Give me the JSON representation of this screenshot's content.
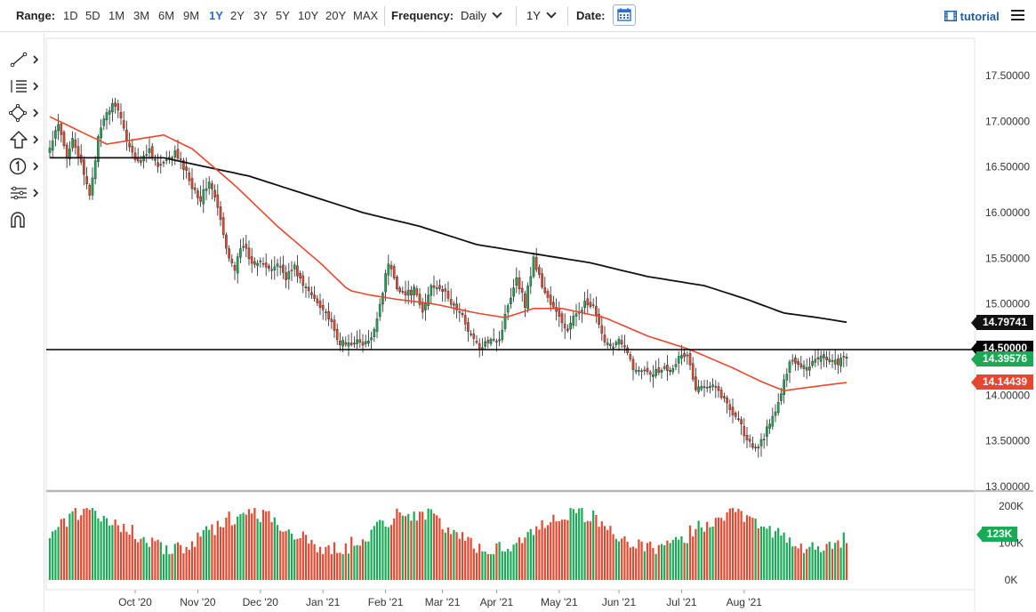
{
  "toolbar": {
    "range_label": "Range:",
    "ranges": [
      "1D",
      "5D",
      "1M",
      "3M",
      "6M",
      "9M",
      "1Y",
      "2Y",
      "3Y",
      "5Y",
      "10Y",
      "20Y",
      "MAX"
    ],
    "active_range": "1Y",
    "frequency_label": "Frequency:",
    "frequency_value": "Daily",
    "period_value": "1Y",
    "date_label": "Date:",
    "calendar_icon": "calendar-icon",
    "brand": "tutorial",
    "brand_icon": "film-icon",
    "menu_icon": "hamburger-menu-icon"
  },
  "sidebar": {
    "tools": [
      "trend-line-icon",
      "fibonacci-icon",
      "shapes-icon",
      "arrow-up-icon",
      "numbered-label-icon",
      "node-tool-icon",
      "magnet-icon"
    ]
  },
  "chart_data": {
    "type": "candlestick",
    "price_axis": {
      "labels": [
        "17.50000",
        "17.00000",
        "16.50000",
        "16.00000",
        "15.50000",
        "15.00000",
        "14.00000",
        "13.50000",
        "13.00000"
      ],
      "ylim": [
        13.0,
        17.8
      ]
    },
    "time_axis": {
      "labels": [
        "Oct '20",
        "Nov '20",
        "Dec '20",
        "Jan '21",
        "Feb '21",
        "Mar '21",
        "Apr '21",
        "May '21",
        "Jun '21",
        "Jul '21",
        "Aug '21"
      ]
    },
    "volume_axis": {
      "labels": [
        "200K",
        "100K",
        "0K"
      ],
      "ylim": [
        0,
        200
      ]
    },
    "horizontal_line": {
      "value": 14.5,
      "label": "14.50000",
      "color": "#000000"
    },
    "last_price": {
      "value": 14.39576,
      "label": "14.39576",
      "color": "#1aaa55"
    },
    "ma_slow": {
      "value": 14.79741,
      "label": "14.79741",
      "color": "#111111"
    },
    "ma_fast": {
      "value": 14.14439,
      "label": "14.14439",
      "color": "#e8472f"
    },
    "volume_last": {
      "value": 123,
      "label": "123K",
      "color": "#1aaa55"
    },
    "colors": {
      "up": "#1aaa55",
      "down": "#e8472f"
    },
    "close_anchors": [
      [
        0,
        16.7
      ],
      [
        3,
        16.95
      ],
      [
        6,
        16.6
      ],
      [
        8,
        16.85
      ],
      [
        12,
        16.4
      ],
      [
        14,
        16.2
      ],
      [
        17,
        16.8
      ],
      [
        20,
        17.1
      ],
      [
        23,
        17.2
      ],
      [
        26,
        16.9
      ],
      [
        29,
        16.65
      ],
      [
        32,
        16.55
      ],
      [
        35,
        16.7
      ],
      [
        38,
        16.5
      ],
      [
        41,
        16.55
      ],
      [
        44,
        16.65
      ],
      [
        47,
        16.5
      ],
      [
        50,
        16.3
      ],
      [
        53,
        16.15
      ],
      [
        56,
        16.35
      ],
      [
        59,
        16.05
      ],
      [
        62,
        15.6
      ],
      [
        65,
        15.4
      ],
      [
        68,
        15.65
      ],
      [
        71,
        15.45
      ],
      [
        74,
        15.5
      ],
      [
        77,
        15.35
      ],
      [
        80,
        15.45
      ],
      [
        83,
        15.3
      ],
      [
        86,
        15.4
      ],
      [
        89,
        15.2
      ],
      [
        92,
        15.1
      ],
      [
        95,
        15.0
      ],
      [
        98,
        14.85
      ],
      [
        101,
        14.6
      ],
      [
        104,
        14.55
      ],
      [
        107,
        14.6
      ],
      [
        110,
        14.55
      ],
      [
        113,
        14.6
      ],
      [
        116,
        15.0
      ],
      [
        119,
        15.45
      ],
      [
        122,
        15.2
      ],
      [
        125,
        15.1
      ],
      [
        128,
        15.15
      ],
      [
        131,
        14.9
      ],
      [
        134,
        15.2
      ],
      [
        137,
        15.2
      ],
      [
        140,
        15.05
      ],
      [
        143,
        14.95
      ],
      [
        146,
        14.8
      ],
      [
        149,
        14.6
      ],
      [
        152,
        14.5
      ],
      [
        155,
        14.65
      ],
      [
        158,
        14.6
      ],
      [
        161,
        15.0
      ],
      [
        164,
        15.3
      ],
      [
        167,
        15.0
      ],
      [
        170,
        15.5
      ],
      [
        173,
        15.2
      ],
      [
        176,
        15.0
      ],
      [
        179,
        14.85
      ],
      [
        182,
        14.7
      ],
      [
        185,
        14.9
      ],
      [
        188,
        15.0
      ],
      [
        191,
        14.95
      ],
      [
        194,
        14.65
      ],
      [
        197,
        14.55
      ],
      [
        200,
        14.6
      ],
      [
        203,
        14.45
      ],
      [
        206,
        14.25
      ],
      [
        209,
        14.3
      ],
      [
        212,
        14.25
      ],
      [
        215,
        14.3
      ],
      [
        218,
        14.3
      ],
      [
        221,
        14.4
      ],
      [
        224,
        14.45
      ],
      [
        227,
        14.05
      ],
      [
        230,
        14.1
      ],
      [
        233,
        14.15
      ],
      [
        236,
        14.0
      ],
      [
        239,
        13.85
      ],
      [
        242,
        13.75
      ],
      [
        245,
        13.5
      ],
      [
        248,
        13.4
      ],
      [
        251,
        13.55
      ],
      [
        254,
        13.75
      ],
      [
        257,
        14.0
      ],
      [
        260,
        14.4
      ],
      [
        263,
        14.35
      ],
      [
        266,
        14.3
      ],
      [
        269,
        14.4
      ],
      [
        272,
        14.45
      ],
      [
        275,
        14.35
      ],
      [
        278,
        14.38
      ],
      [
        280,
        14.4
      ]
    ],
    "ma_fast_anchors": [
      [
        0,
        17.05
      ],
      [
        20,
        16.75
      ],
      [
        40,
        16.85
      ],
      [
        50,
        16.7
      ],
      [
        65,
        16.3
      ],
      [
        80,
        15.85
      ],
      [
        95,
        15.45
      ],
      [
        105,
        15.15
      ],
      [
        112,
        15.1
      ],
      [
        122,
        15.05
      ],
      [
        135,
        15.0
      ],
      [
        150,
        14.9
      ],
      [
        160,
        14.85
      ],
      [
        170,
        14.95
      ],
      [
        180,
        14.95
      ],
      [
        195,
        14.85
      ],
      [
        210,
        14.65
      ],
      [
        225,
        14.5
      ],
      [
        240,
        14.3
      ],
      [
        250,
        14.15
      ],
      [
        258,
        14.05
      ],
      [
        265,
        14.08
      ],
      [
        280,
        14.14
      ]
    ],
    "ma_slow_anchors": [
      [
        0,
        16.6
      ],
      [
        20,
        16.6
      ],
      [
        40,
        16.6
      ],
      [
        55,
        16.5
      ],
      [
        70,
        16.4
      ],
      [
        85,
        16.25
      ],
      [
        100,
        16.1
      ],
      [
        110,
        16.0
      ],
      [
        130,
        15.85
      ],
      [
        150,
        15.65
      ],
      [
        170,
        15.55
      ],
      [
        190,
        15.45
      ],
      [
        210,
        15.3
      ],
      [
        230,
        15.2
      ],
      [
        245,
        15.05
      ],
      [
        258,
        14.9
      ],
      [
        270,
        14.85
      ],
      [
        280,
        14.8
      ]
    ]
  }
}
